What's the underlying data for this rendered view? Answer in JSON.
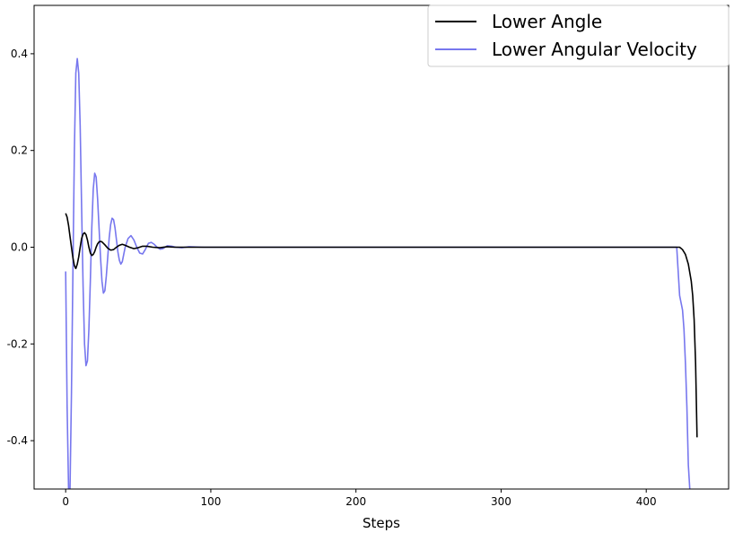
{
  "chart_data": {
    "type": "line",
    "title": "",
    "xlabel": "Steps",
    "ylabel": "",
    "xlim": [
      -21.75,
      456.75
    ],
    "ylim": [
      -0.5,
      0.5
    ],
    "xticks": [
      0,
      100,
      200,
      300,
      400
    ],
    "yticks": [
      -0.4,
      -0.2,
      0.0,
      0.2,
      0.4
    ],
    "xtick_labels": [
      "0",
      "100",
      "200",
      "300",
      "400"
    ],
    "ytick_labels": [
      "-0.4",
      "-0.2",
      "0.0",
      "0.2",
      "0.4"
    ],
    "grid": false,
    "legend": "top-right",
    "series": [
      {
        "name": "Lower Angle",
        "color": "#000000",
        "points": [
          [
            0,
            0.07
          ],
          [
            1,
            0.062
          ],
          [
            2,
            0.045
          ],
          [
            3,
            0.022
          ],
          [
            4,
            0.0
          ],
          [
            5,
            -0.022
          ],
          [
            6,
            -0.038
          ],
          [
            7,
            -0.044
          ],
          [
            8,
            -0.035
          ],
          [
            9,
            -0.02
          ],
          [
            10,
            0.0
          ],
          [
            11,
            0.018
          ],
          [
            12,
            0.027
          ],
          [
            13,
            0.03
          ],
          [
            14,
            0.026
          ],
          [
            15,
            0.015
          ],
          [
            16,
            0.0
          ],
          [
            17,
            -0.012
          ],
          [
            18,
            -0.017
          ],
          [
            19,
            -0.015
          ],
          [
            20,
            -0.009
          ],
          [
            21,
            0.0
          ],
          [
            22,
            0.007
          ],
          [
            23,
            0.011
          ],
          [
            24,
            0.012
          ],
          [
            25,
            0.011
          ],
          [
            27,
            0.005
          ],
          [
            29,
            -0.002
          ],
          [
            31,
            -0.006
          ],
          [
            33,
            -0.005
          ],
          [
            35,
            0.0
          ],
          [
            37,
            0.004
          ],
          [
            39,
            0.006
          ],
          [
            41,
            0.004
          ],
          [
            44,
            0.0
          ],
          [
            47,
            -0.003
          ],
          [
            50,
            -0.001
          ],
          [
            53,
            0.002
          ],
          [
            56,
            0.002
          ],
          [
            60,
            0.0
          ],
          [
            65,
            -0.001
          ],
          [
            70,
            0.001
          ],
          [
            75,
            0.0
          ],
          [
            90,
            0.0
          ],
          [
            150,
            0.0
          ],
          [
            250,
            0.0
          ],
          [
            350,
            0.0
          ],
          [
            420,
            0.0
          ],
          [
            423,
            0.0
          ],
          [
            425,
            -0.005
          ],
          [
            427,
            -0.015
          ],
          [
            429,
            -0.035
          ],
          [
            431,
            -0.07
          ],
          [
            432,
            -0.1
          ],
          [
            433,
            -0.15
          ],
          [
            434,
            -0.24
          ],
          [
            435,
            -0.393
          ]
        ]
      },
      {
        "name": "Lower Angular Velocity",
        "color": "#7777ee",
        "points": [
          [
            0,
            -0.05
          ],
          [
            1,
            -0.33
          ],
          [
            2,
            -0.5
          ],
          [
            3,
            -0.5
          ],
          [
            4,
            -0.3
          ],
          [
            5,
            -0.05
          ],
          [
            6,
            0.2
          ],
          [
            7,
            0.36
          ],
          [
            8,
            0.39
          ],
          [
            9,
            0.36
          ],
          [
            10,
            0.25
          ],
          [
            11,
            0.08
          ],
          [
            12,
            -0.08
          ],
          [
            13,
            -0.2
          ],
          [
            14,
            -0.245
          ],
          [
            15,
            -0.235
          ],
          [
            16,
            -0.17
          ],
          [
            17,
            -0.07
          ],
          [
            18,
            0.04
          ],
          [
            19,
            0.12
          ],
          [
            20,
            0.153
          ],
          [
            21,
            0.145
          ],
          [
            22,
            0.1
          ],
          [
            23,
            0.04
          ],
          [
            24,
            -0.02
          ],
          [
            25,
            -0.07
          ],
          [
            26,
            -0.095
          ],
          [
            27,
            -0.09
          ],
          [
            28,
            -0.06
          ],
          [
            29,
            -0.02
          ],
          [
            30,
            0.02
          ],
          [
            31,
            0.047
          ],
          [
            32,
            0.06
          ],
          [
            33,
            0.057
          ],
          [
            34,
            0.04
          ],
          [
            35,
            0.015
          ],
          [
            36,
            -0.01
          ],
          [
            37,
            -0.027
          ],
          [
            38,
            -0.035
          ],
          [
            39,
            -0.03
          ],
          [
            40,
            -0.015
          ],
          [
            41,
            0.0
          ],
          [
            43,
            0.018
          ],
          [
            45,
            0.024
          ],
          [
            47,
            0.015
          ],
          [
            49,
            0.0
          ],
          [
            51,
            -0.012
          ],
          [
            53,
            -0.014
          ],
          [
            55,
            -0.004
          ],
          [
            57,
            0.008
          ],
          [
            59,
            0.01
          ],
          [
            61,
            0.006
          ],
          [
            63,
            0.0
          ],
          [
            65,
            -0.004
          ],
          [
            67,
            -0.003
          ],
          [
            70,
            0.003
          ],
          [
            73,
            0.002
          ],
          [
            76,
            0.0
          ],
          [
            80,
            -0.001
          ],
          [
            85,
            0.001
          ],
          [
            95,
            0.0
          ],
          [
            150,
            0.0
          ],
          [
            250,
            0.0
          ],
          [
            350,
            0.0
          ],
          [
            421,
            0.0
          ],
          [
            422,
            -0.05
          ],
          [
            423,
            -0.1
          ],
          [
            424,
            -0.115
          ],
          [
            425,
            -0.13
          ],
          [
            426,
            -0.17
          ],
          [
            427,
            -0.24
          ],
          [
            428,
            -0.33
          ],
          [
            429,
            -0.45
          ],
          [
            430,
            -0.5
          ]
        ]
      }
    ]
  }
}
